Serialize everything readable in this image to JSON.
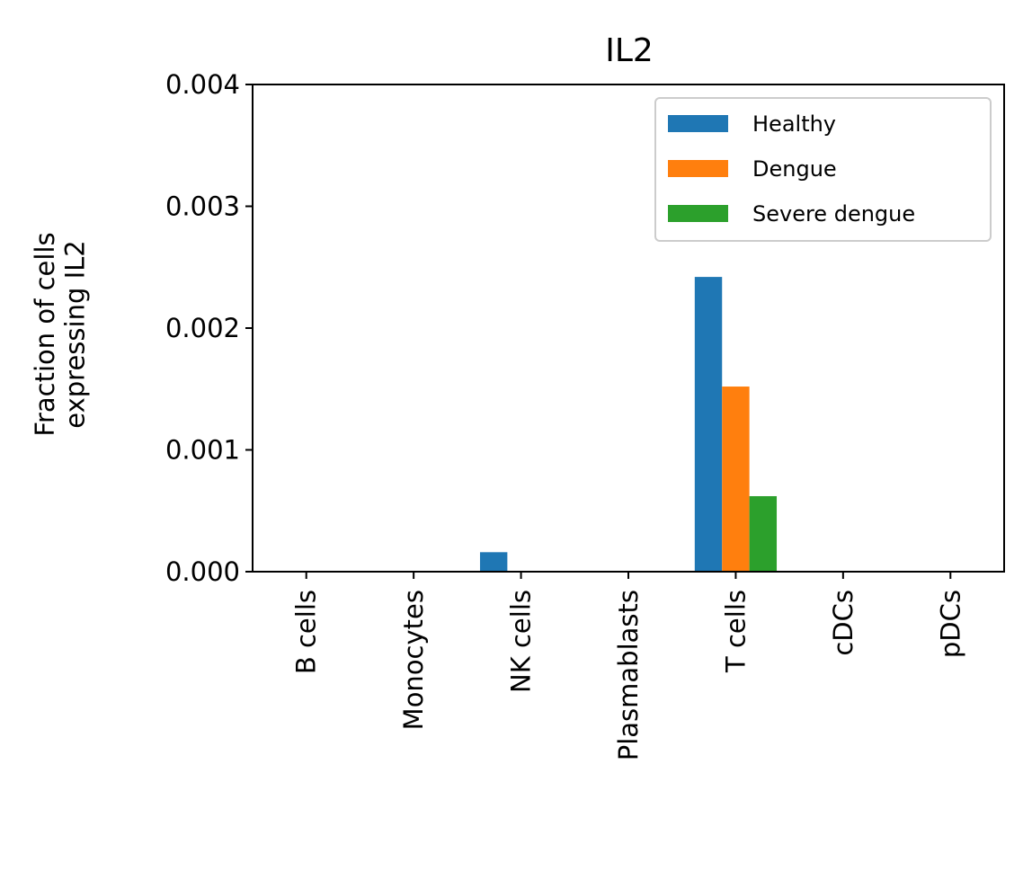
{
  "chart_data": {
    "type": "bar",
    "title": "IL2",
    "xlabel": "",
    "ylabel": "Fraction of cells\nexpressing IL2",
    "categories": [
      "B cells",
      "Monocytes",
      "NK cells",
      "Plasmablasts",
      "T cells",
      "cDCs",
      "pDCs"
    ],
    "series": [
      {
        "name": "Healthy",
        "color": "#1f77b4",
        "values": [
          0,
          0,
          0.00016,
          0,
          0.00242,
          0,
          0
        ]
      },
      {
        "name": "Dengue",
        "color": "#ff7f0e",
        "values": [
          0,
          0,
          0,
          0,
          0.00152,
          0,
          0
        ]
      },
      {
        "name": "Severe dengue",
        "color": "#2ca02c",
        "values": [
          0,
          0,
          0,
          0,
          0.00062,
          0,
          0
        ]
      }
    ],
    "ylim": [
      0,
      0.004
    ],
    "yticks": [
      "0.000",
      "0.001",
      "0.002",
      "0.003",
      "0.004"
    ],
    "grid": false,
    "legend_position": "top-right"
  }
}
